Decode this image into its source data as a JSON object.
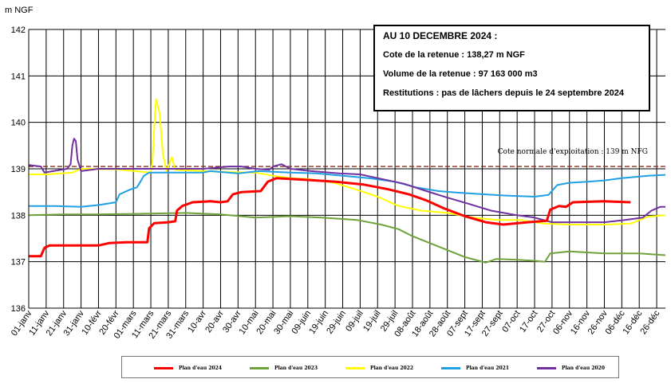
{
  "chart_data": {
    "type": "line",
    "ylabel": "m NGF",
    "ylim": [
      136,
      142
    ],
    "yticks": [
      "136",
      "137",
      "138",
      "139",
      "140",
      "141",
      "142"
    ],
    "xlim": [
      0,
      365
    ],
    "xtick_labels": [
      "01-janv",
      "11-janv",
      "21-janv",
      "31-janv",
      "10-févr",
      "20-févr",
      "01-mars",
      "11-mars",
      "21-mars",
      "31-mars",
      "10-avr",
      "20-avr",
      "30-avr",
      "10-mai",
      "20-mai",
      "30-mai",
      "09-juin",
      "19-juin",
      "29-juin",
      "09-juil",
      "19-juil",
      "29-juil",
      "08-août",
      "18-août",
      "28-août",
      "07-sept",
      "17-sept",
      "27-sept",
      "07-oct",
      "17-oct",
      "27-oct",
      "06-nov",
      "16-nov",
      "26-nov",
      "06-déc",
      "16-déc",
      "26-déc"
    ],
    "reference_line": {
      "label": "Cote normale d'exploitation : 139 m NFG",
      "value": 139.05,
      "color": "#8b2a1a"
    },
    "series": [
      {
        "name": "Plan d'eau 2024",
        "color": "#ff0000",
        "width": 3,
        "points": [
          [
            0,
            137.12
          ],
          [
            7,
            137.12
          ],
          [
            9,
            137.3
          ],
          [
            12,
            137.35
          ],
          [
            40,
            137.35
          ],
          [
            46,
            137.4
          ],
          [
            56,
            137.42
          ],
          [
            68,
            137.42
          ],
          [
            69,
            137.72
          ],
          [
            72,
            137.83
          ],
          [
            80,
            137.85
          ],
          [
            84,
            137.87
          ],
          [
            85,
            138.1
          ],
          [
            88,
            138.2
          ],
          [
            94,
            138.28
          ],
          [
            104,
            138.3
          ],
          [
            110,
            138.28
          ],
          [
            114,
            138.3
          ],
          [
            117,
            138.45
          ],
          [
            122,
            138.5
          ],
          [
            133,
            138.52
          ],
          [
            137,
            138.72
          ],
          [
            142,
            138.8
          ],
          [
            150,
            138.78
          ],
          [
            160,
            138.76
          ],
          [
            176,
            138.72
          ],
          [
            192,
            138.66
          ],
          [
            206,
            138.56
          ],
          [
            218,
            138.45
          ],
          [
            228,
            138.32
          ],
          [
            238,
            138.15
          ],
          [
            250,
            137.98
          ],
          [
            262,
            137.85
          ],
          [
            272,
            137.8
          ],
          [
            286,
            137.85
          ],
          [
            297,
            137.88
          ],
          [
            299,
            138.12
          ],
          [
            304,
            138.2
          ],
          [
            308,
            138.18
          ],
          [
            312,
            138.28
          ],
          [
            330,
            138.3
          ],
          [
            345,
            138.28
          ]
        ]
      },
      {
        "name": "Plan d'eau 2023",
        "color": "#6ea33c",
        "width": 2,
        "points": [
          [
            0,
            138
          ],
          [
            20,
            138.02
          ],
          [
            40,
            138.02
          ],
          [
            60,
            138.03
          ],
          [
            90,
            138.05
          ],
          [
            110,
            138.02
          ],
          [
            130,
            137.95
          ],
          [
            150,
            137.98
          ],
          [
            168,
            137.95
          ],
          [
            188,
            137.9
          ],
          [
            202,
            137.8
          ],
          [
            212,
            137.7
          ],
          [
            220,
            137.55
          ],
          [
            230,
            137.4
          ],
          [
            240,
            137.25
          ],
          [
            250,
            137.1
          ],
          [
            258,
            137.02
          ],
          [
            262,
            136.98
          ],
          [
            268,
            137.06
          ],
          [
            280,
            137.04
          ],
          [
            290,
            137.02
          ],
          [
            296,
            137.0
          ],
          [
            299,
            137.18
          ],
          [
            310,
            137.22
          ],
          [
            330,
            137.18
          ],
          [
            350,
            137.18
          ],
          [
            365,
            137.14
          ]
        ]
      },
      {
        "name": "Plan d'eau 2022",
        "color": "#ffff00",
        "width": 2,
        "points": [
          [
            0,
            138.88
          ],
          [
            10,
            138.88
          ],
          [
            25,
            138.92
          ],
          [
            30,
            139.0
          ],
          [
            50,
            138.99
          ],
          [
            70,
            138.92
          ],
          [
            71,
            139.2
          ],
          [
            72,
            139.9
          ],
          [
            73,
            140.5
          ],
          [
            75,
            140.2
          ],
          [
            77,
            139.3
          ],
          [
            79,
            138.95
          ],
          [
            82,
            139.25
          ],
          [
            84,
            138.98
          ],
          [
            100,
            138.95
          ],
          [
            115,
            138.93
          ],
          [
            130,
            138.92
          ],
          [
            140,
            138.85
          ],
          [
            150,
            138.8
          ],
          [
            160,
            138.78
          ],
          [
            175,
            138.7
          ],
          [
            188,
            138.55
          ],
          [
            200,
            138.4
          ],
          [
            212,
            138.2
          ],
          [
            225,
            138.1
          ],
          [
            240,
            138.05
          ],
          [
            255,
            137.95
          ],
          [
            268,
            137.9
          ],
          [
            282,
            137.9
          ],
          [
            295,
            137.82
          ],
          [
            310,
            137.8
          ],
          [
            330,
            137.8
          ],
          [
            345,
            137.82
          ],
          [
            355,
            137.97
          ],
          [
            365,
            138.0
          ]
        ]
      },
      {
        "name": "Plan d'eau 2021",
        "color": "#1fa0e4",
        "width": 2,
        "points": [
          [
            0,
            138.2
          ],
          [
            15,
            138.2
          ],
          [
            30,
            138.18
          ],
          [
            40,
            138.22
          ],
          [
            50,
            138.28
          ],
          [
            52,
            138.45
          ],
          [
            58,
            138.55
          ],
          [
            62,
            138.6
          ],
          [
            64,
            138.72
          ],
          [
            66,
            138.85
          ],
          [
            69,
            138.92
          ],
          [
            80,
            138.92
          ],
          [
            100,
            138.92
          ],
          [
            104,
            138.95
          ],
          [
            111,
            138.93
          ],
          [
            120,
            138.9
          ],
          [
            132,
            138.95
          ],
          [
            150,
            138.92
          ],
          [
            165,
            138.9
          ],
          [
            180,
            138.85
          ],
          [
            195,
            138.8
          ],
          [
            210,
            138.72
          ],
          [
            222,
            138.6
          ],
          [
            235,
            138.52
          ],
          [
            248,
            138.48
          ],
          [
            262,
            138.45
          ],
          [
            275,
            138.42
          ],
          [
            290,
            138.4
          ],
          [
            298,
            138.44
          ],
          [
            303,
            138.65
          ],
          [
            310,
            138.7
          ],
          [
            320,
            138.72
          ],
          [
            330,
            138.75
          ],
          [
            340,
            138.8
          ],
          [
            355,
            138.85
          ],
          [
            365,
            138.87
          ]
        ]
      },
      {
        "name": "Plan d'eau 2020",
        "color": "#7030a0",
        "width": 2,
        "points": [
          [
            0,
            139.08
          ],
          [
            7,
            139.05
          ],
          [
            9,
            138.92
          ],
          [
            14,
            138.95
          ],
          [
            22,
            139.0
          ],
          [
            24,
            139.1
          ],
          [
            25,
            139.5
          ],
          [
            26,
            139.65
          ],
          [
            27,
            139.6
          ],
          [
            28,
            139.2
          ],
          [
            30,
            138.95
          ],
          [
            40,
            139.0
          ],
          [
            60,
            139.0
          ],
          [
            80,
            139.0
          ],
          [
            100,
            139.0
          ],
          [
            115,
            139.05
          ],
          [
            122,
            139.05
          ],
          [
            130,
            139.0
          ],
          [
            138,
            138.98
          ],
          [
            140,
            139.05
          ],
          [
            145,
            139.1
          ],
          [
            150,
            139.0
          ],
          [
            162,
            138.95
          ],
          [
            178,
            138.9
          ],
          [
            190,
            138.88
          ],
          [
            200,
            138.8
          ],
          [
            215,
            138.68
          ],
          [
            228,
            138.52
          ],
          [
            240,
            138.38
          ],
          [
            252,
            138.25
          ],
          [
            265,
            138.1
          ],
          [
            280,
            138.0
          ],
          [
            290,
            137.95
          ],
          [
            300,
            137.85
          ],
          [
            318,
            137.85
          ],
          [
            330,
            137.85
          ],
          [
            342,
            137.9
          ],
          [
            352,
            137.95
          ],
          [
            357,
            138.1
          ],
          [
            362,
            138.18
          ],
          [
            365,
            138.18
          ]
        ]
      }
    ]
  },
  "info": {
    "date": "AU 10 DECEMBRE 2024 :",
    "cote": "Cote de la retenue : 138,27 m NGF",
    "volume": "Volume de la retenue : 97 163 000 m3",
    "restitutions": "Restitutions : pas de lâchers depuis le 24 septembre 2024"
  },
  "legend": [
    {
      "label": "Plan d'eau 2024",
      "color": "#ff0000"
    },
    {
      "label": "Plan d'eau 2023",
      "color": "#6ea33c"
    },
    {
      "label": "Plan d'eau 2022",
      "color": "#ffff00"
    },
    {
      "label": "Plan d'eau 2021",
      "color": "#1fa0e4"
    },
    {
      "label": "Plan d'eau 2020",
      "color": "#7030a0"
    }
  ]
}
